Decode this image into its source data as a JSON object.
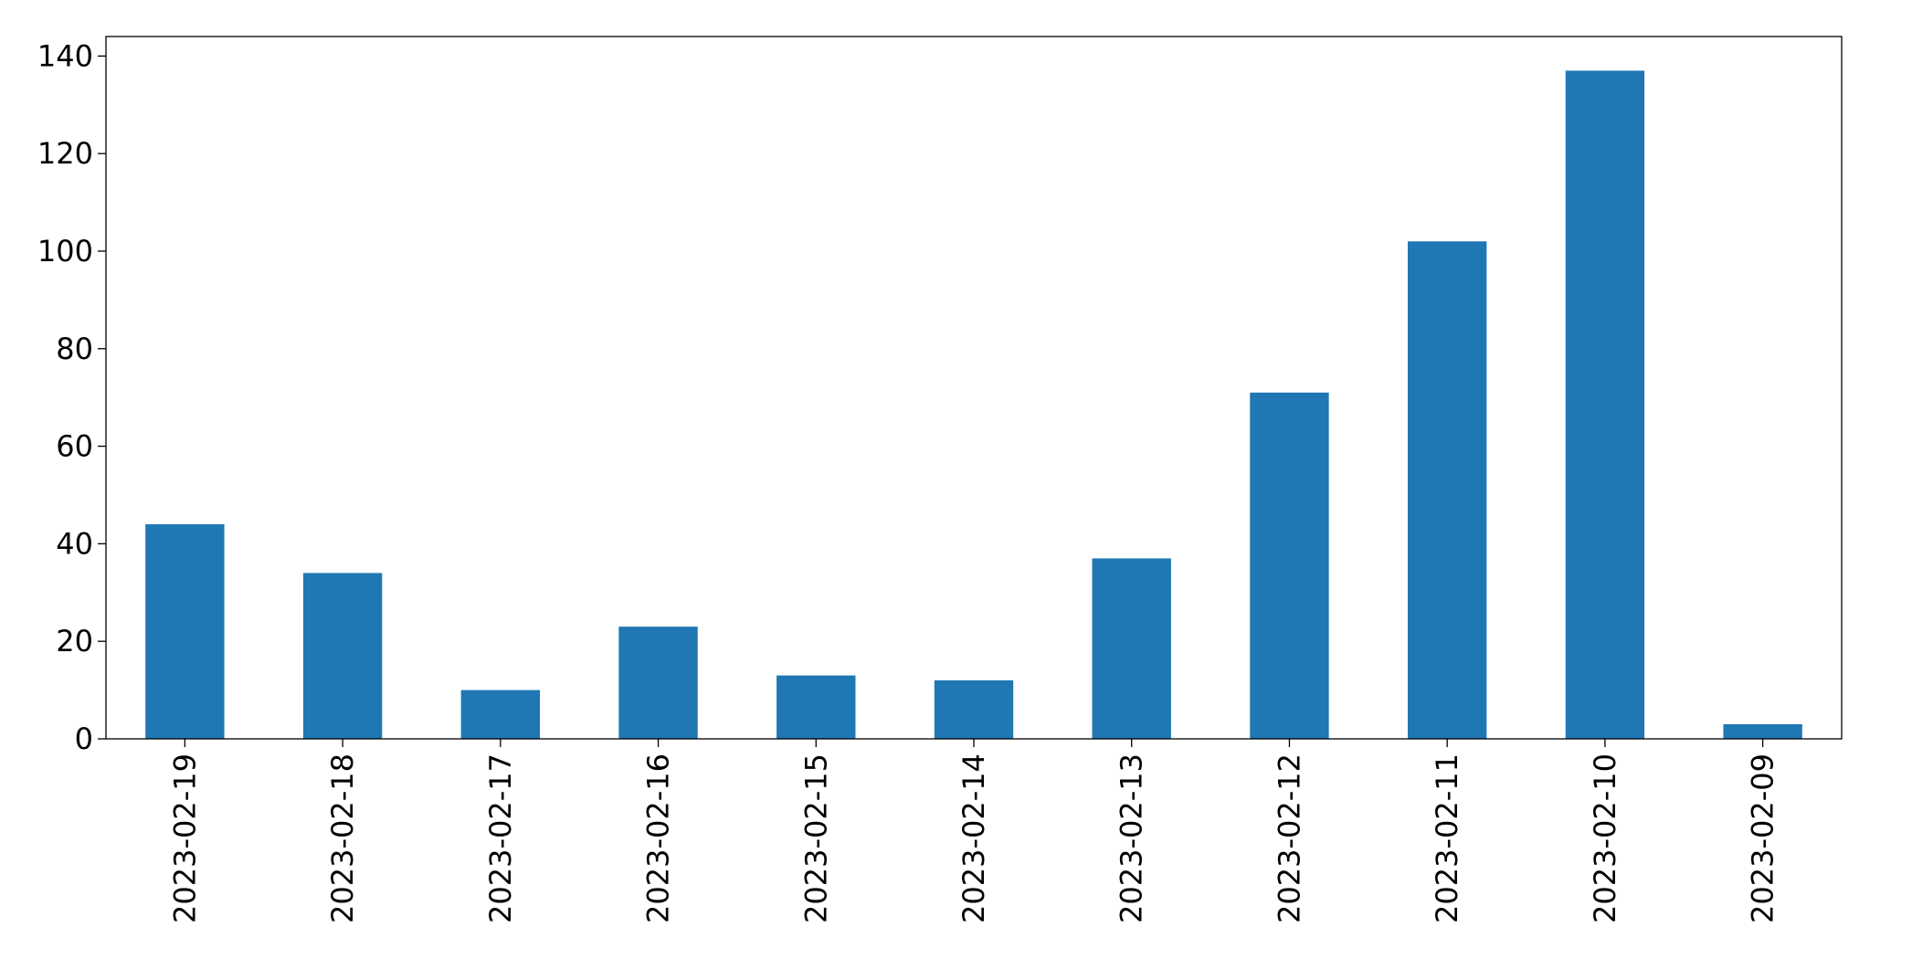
{
  "chart_data": {
    "type": "bar",
    "categories": [
      "2023-02-19",
      "2023-02-18",
      "2023-02-17",
      "2023-02-16",
      "2023-02-15",
      "2023-02-14",
      "2023-02-13",
      "2023-02-12",
      "2023-02-11",
      "2023-02-10",
      "2023-02-09"
    ],
    "values": [
      44,
      34,
      10,
      23,
      13,
      12,
      37,
      71,
      102,
      137,
      3
    ],
    "color": "#1f77b4",
    "ylim": [
      0,
      144
    ],
    "yticks": [
      0,
      20,
      40,
      60,
      80,
      100,
      120,
      140
    ],
    "grid": false
  }
}
